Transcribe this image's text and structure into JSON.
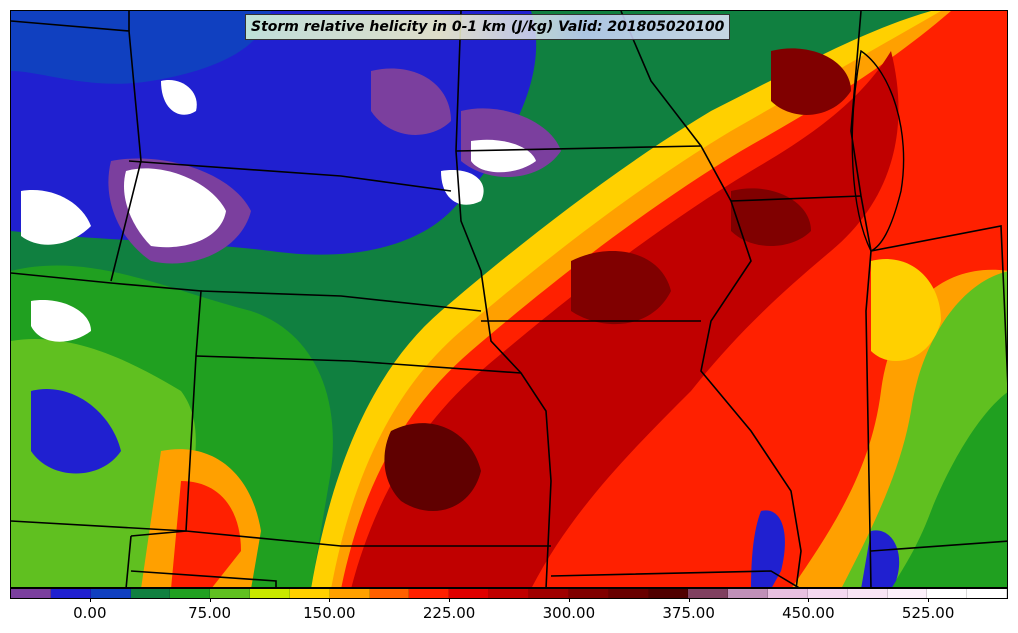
{
  "title": "Storm relative helicity in 0-1 km (J/kg) Valid: 201805020100",
  "colorbar": {
    "min": -50,
    "max": 575,
    "interval": 25,
    "tick_values": [
      0,
      75,
      150,
      225,
      300,
      375,
      450,
      525
    ],
    "tick_labels": [
      "0.00",
      "75.00",
      "150.00",
      "225.00",
      "300.00",
      "375.00",
      "450.00",
      "525.00"
    ],
    "colors": [
      "#7b3f9e",
      "#2020d0",
      "#1040c0",
      "#108040",
      "#20a020",
      "#60c020",
      "#c8e800",
      "#ffd000",
      "#ffa000",
      "#ff6000",
      "#ff2000",
      "#e00000",
      "#c00000",
      "#a00000",
      "#800000",
      "#680000",
      "#500000",
      "#804060",
      "#c090b8",
      "#e8c0e0",
      "#f4d8f0",
      "#f8e4f4",
      "#fcf0fa",
      "#ffffff",
      "#ffffff"
    ]
  },
  "field_colors": {
    "purple": "#7b3f9e",
    "blue": "#2020d0",
    "darkgreen": "#108040",
    "green": "#20a020",
    "lime": "#60c020",
    "yellow": "#ffd000",
    "orange": "#ffa000",
    "red": "#ff2000",
    "darkred": "#b00000",
    "maroon": "#600000",
    "white": "#ffffff",
    "pink": "#e8c0e0"
  }
}
